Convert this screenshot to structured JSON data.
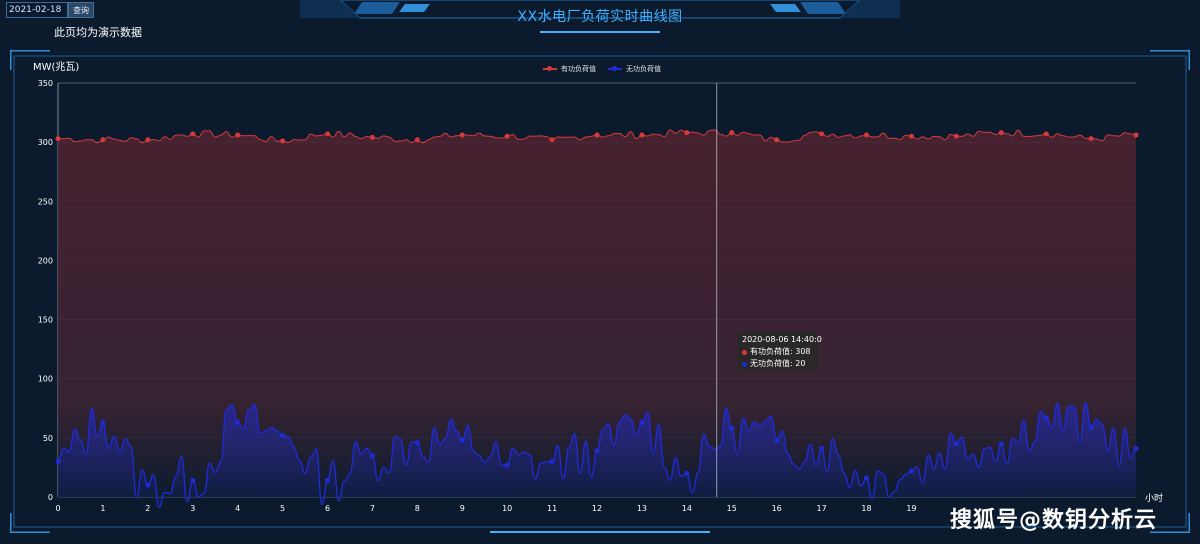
{
  "toolbar": {
    "date_value": "2021-02-18",
    "query_label": "查询"
  },
  "header": {
    "title": "XX水电厂负荷实时曲线图",
    "demo_note": "此页均为演示数据"
  },
  "colors": {
    "background": "#0b1a2c",
    "frame": "#2f8fd8",
    "active_series": "#d83a3a",
    "reactive_series": "#1f2bd8",
    "title": "#3fb0ff"
  },
  "chart_data": {
    "type": "line",
    "ylabel": "MW(兆瓦)",
    "xlabel": "小时",
    "ylim": [
      0,
      350
    ],
    "xlim": [
      0,
      24
    ],
    "yticks": [
      0,
      50,
      100,
      150,
      200,
      250,
      300,
      350
    ],
    "xticks": [
      0,
      1,
      2,
      3,
      4,
      5,
      6,
      7,
      8,
      9,
      10,
      11,
      12,
      13,
      14,
      15,
      16,
      17,
      18,
      19
    ],
    "grid": true,
    "legend_position": "top-center",
    "series": [
      {
        "name": "有功负荷值",
        "color": "#d83a3a",
        "x": [
          0,
          1,
          2,
          3,
          4,
          5,
          6,
          7,
          8,
          9,
          10,
          11,
          12,
          13,
          14,
          15,
          16,
          17,
          18,
          19,
          20,
          21,
          22,
          23,
          24
        ],
        "values": [
          303,
          302,
          302,
          307,
          306,
          301,
          307,
          304,
          302,
          306,
          305,
          302,
          306,
          306,
          308,
          308,
          302,
          307,
          306,
          305,
          305,
          308,
          307,
          303,
          306
        ]
      },
      {
        "name": "无功负荷值",
        "color": "#1f2bd8",
        "x": [
          0,
          1,
          2,
          3,
          4,
          5,
          6,
          7,
          8,
          9,
          10,
          11,
          12,
          13,
          14,
          15,
          16,
          17,
          18,
          19,
          20,
          21,
          22,
          23,
          24
        ],
        "values": [
          30,
          63,
          10,
          14,
          63,
          52,
          14,
          35,
          46,
          48,
          27,
          30,
          39,
          63,
          20,
          58,
          48,
          41,
          16,
          22,
          45,
          45,
          67,
          59,
          41
        ]
      }
    ],
    "tooltip": {
      "time": "2020-08-06 14:40:0",
      "lines": [
        "有功负荷值: 308",
        "无功负荷值: 20"
      ]
    }
  },
  "watermark": "搜狐号@数钥分析云"
}
